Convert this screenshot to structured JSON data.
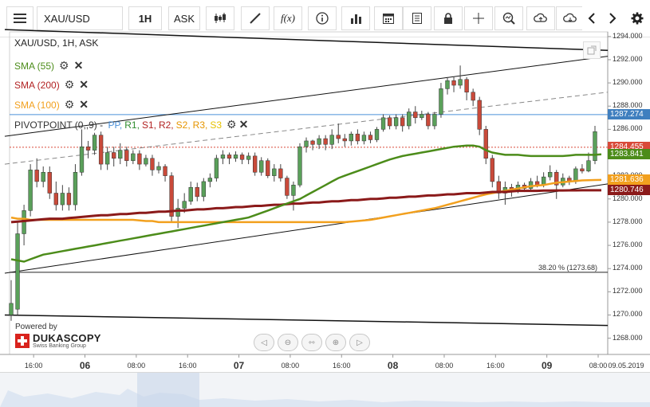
{
  "toolbar": {
    "instrument": "XAU/USD",
    "timeframe": "1H",
    "side": "ASK",
    "fx_label": "f(x)"
  },
  "legend": {
    "title": "XAU/USD, 1H, ASK",
    "sma55": "SMA (55)",
    "sma200": "SMA (200)",
    "sma100": "SMA (100)",
    "pivot_prefix": "PIVOTPOINT (0,,9) - ",
    "pivot_items": [
      {
        "label": "PP,",
        "color": "#4a90d9"
      },
      {
        "label": "R1,",
        "color": "#2e8b2e"
      },
      {
        "label": "S1,",
        "color": "#b22222"
      },
      {
        "label": "R2,",
        "color": "#b22222"
      },
      {
        "label": "S2,",
        "color": "#e69500"
      },
      {
        "label": "R3,",
        "color": "#e69500"
      },
      {
        "label": "S3",
        "color": "#e6c200"
      }
    ]
  },
  "colors": {
    "up": "#5aa05a",
    "down": "#c94a3a",
    "sma55": "#4c8c1a",
    "sma200": "#8b1a1a",
    "sma100": "#f2a01e",
    "pivot": "#4a90d9",
    "current": "#d94a3a"
  },
  "price_tags": [
    {
      "value": "1287.274",
      "color": "#3f7fbf"
    },
    {
      "value": "1284.455",
      "color": "#d94a3a"
    },
    {
      "value": "1283.841",
      "color": "#4c8c1a"
    },
    {
      "value": "1281.636",
      "color": "#f2a01e"
    },
    {
      "value": "1280.746",
      "color": "#8b1a1a"
    }
  ],
  "fib_label": "38.20 % (1273.68)",
  "branding": {
    "powered_by": "Powered by",
    "brand": "DUKASCOPY",
    "tagline": "Swiss Banking Group"
  },
  "chart_data": {
    "type": "candlestick",
    "instrument": "XAU/USD",
    "timeframe": "1H",
    "ylim": [
      1266.6,
      1294.4
    ],
    "y_ticks": [
      "1294.000",
      "1292.000",
      "1290.000",
      "1288.000",
      "1286.000",
      "1282.000",
      "1280.000",
      "1278.000",
      "1276.000",
      "1274.000",
      "1272.000",
      "1270.000",
      "1268.000"
    ],
    "x_ticks": [
      {
        "label": "16:00",
        "idx": 3.5,
        "bold": false
      },
      {
        "label": "06",
        "idx": 11.5,
        "bold": true
      },
      {
        "label": "08:00",
        "idx": 19.5,
        "bold": false
      },
      {
        "label": "16:00",
        "idx": 27.5,
        "bold": false
      },
      {
        "label": "07",
        "idx": 35.5,
        "bold": true
      },
      {
        "label": "08:00",
        "idx": 43.5,
        "bold": false
      },
      {
        "label": "16:00",
        "idx": 51.5,
        "bold": false
      },
      {
        "label": "08",
        "idx": 59.5,
        "bold": true
      },
      {
        "label": "08:00",
        "idx": 67.5,
        "bold": false
      },
      {
        "label": "16:00",
        "idx": 75.5,
        "bold": false
      },
      {
        "label": "09",
        "idx": 83.5,
        "bold": true
      },
      {
        "label": "08:00",
        "idx": 91.5,
        "bold": false
      }
    ],
    "last_date_label": "09.05.2019",
    "candles": [
      [
        1270.0,
        1271.0,
        1269.5,
        1273.0
      ],
      [
        1270.5,
        1277.0,
        1270.0,
        1278.0
      ],
      [
        1277.0,
        1279.0,
        1276.0,
        1279.5
      ],
      [
        1279.0,
        1282.5,
        1278.5,
        1283.0
      ],
      [
        1282.5,
        1281.5,
        1281.0,
        1283.5
      ],
      [
        1281.5,
        1282.3,
        1281.0,
        1282.8
      ],
      [
        1282.3,
        1280.5,
        1280.0,
        1282.8
      ],
      [
        1280.5,
        1279.5,
        1279.0,
        1281.5
      ],
      [
        1279.5,
        1280.5,
        1279.0,
        1281.2
      ],
      [
        1280.5,
        1279.5,
        1279.0,
        1281.0
      ],
      [
        1279.5,
        1282.3,
        1279.0,
        1283.0
      ],
      [
        1282.3,
        1284.5,
        1282.0,
        1286.0
      ],
      [
        1284.5,
        1284.2,
        1283.5,
        1285.0
      ],
      [
        1284.2,
        1285.5,
        1283.8,
        1285.7
      ],
      [
        1285.5,
        1283.0,
        1282.5,
        1285.8
      ],
      [
        1283.0,
        1284.0,
        1282.5,
        1284.5
      ],
      [
        1284.0,
        1283.5,
        1282.8,
        1284.5
      ],
      [
        1283.5,
        1284.2,
        1283.0,
        1284.8
      ],
      [
        1284.2,
        1283.3,
        1282.8,
        1284.5
      ],
      [
        1283.3,
        1283.9,
        1283.0,
        1284.2
      ],
      [
        1283.9,
        1283.0,
        1282.5,
        1284.2
      ],
      [
        1283.0,
        1283.5,
        1282.8,
        1283.8
      ],
      [
        1283.5,
        1282.5,
        1282.0,
        1283.8
      ],
      [
        1282.5,
        1282.8,
        1282.2,
        1283.2
      ],
      [
        1282.8,
        1282.0,
        1281.5,
        1283.0
      ],
      [
        1282.0,
        1278.5,
        1278.0,
        1282.3
      ],
      [
        1278.5,
        1279.2,
        1277.5,
        1280.0
      ],
      [
        1279.2,
        1279.8,
        1278.8,
        1280.5
      ],
      [
        1279.8,
        1281.0,
        1279.5,
        1281.5
      ],
      [
        1281.0,
        1280.2,
        1279.8,
        1281.4
      ],
      [
        1280.2,
        1281.5,
        1279.8,
        1281.8
      ],
      [
        1281.5,
        1281.8,
        1281.0,
        1282.2
      ],
      [
        1281.8,
        1283.5,
        1281.5,
        1283.8
      ],
      [
        1283.5,
        1283.8,
        1283.0,
        1284.2
      ],
      [
        1283.8,
        1283.5,
        1283.0,
        1284.0
      ],
      [
        1283.5,
        1283.8,
        1283.2,
        1284.1
      ],
      [
        1283.8,
        1283.4,
        1283.0,
        1284.0
      ],
      [
        1283.4,
        1283.7,
        1283.0,
        1284.0
      ],
      [
        1283.7,
        1282.3,
        1282.0,
        1284.0
      ],
      [
        1282.3,
        1283.3,
        1282.0,
        1283.6
      ],
      [
        1283.3,
        1282.0,
        1281.8,
        1283.5
      ],
      [
        1282.0,
        1282.6,
        1281.5,
        1283.0
      ],
      [
        1282.6,
        1281.8,
        1281.5,
        1283.0
      ],
      [
        1281.8,
        1280.3,
        1280.0,
        1282.0
      ],
      [
        1280.3,
        1281.2,
        1279.0,
        1281.5
      ],
      [
        1281.2,
        1284.5,
        1281.0,
        1284.8
      ],
      [
        1284.5,
        1285.0,
        1284.0,
        1285.3
      ],
      [
        1285.0,
        1284.7,
        1284.2,
        1285.1
      ],
      [
        1284.7,
        1285.2,
        1284.3,
        1285.5
      ],
      [
        1285.2,
        1284.7,
        1284.2,
        1285.5
      ],
      [
        1284.7,
        1285.5,
        1284.3,
        1286.0
      ],
      [
        1285.5,
        1285.2,
        1284.8,
        1286.5
      ],
      [
        1285.2,
        1285.0,
        1284.5,
        1285.6
      ],
      [
        1285.0,
        1285.6,
        1284.6,
        1285.8
      ],
      [
        1285.6,
        1285.0,
        1284.7,
        1286.0
      ],
      [
        1285.0,
        1285.5,
        1284.7,
        1285.8
      ],
      [
        1285.5,
        1285.1,
        1284.8,
        1285.8
      ],
      [
        1285.1,
        1286.0,
        1284.9,
        1286.2
      ],
      [
        1286.0,
        1287.0,
        1285.8,
        1287.3
      ],
      [
        1287.0,
        1286.3,
        1286.0,
        1287.2
      ],
      [
        1286.3,
        1287.0,
        1286.0,
        1287.3
      ],
      [
        1287.0,
        1286.3,
        1285.8,
        1287.3
      ],
      [
        1286.3,
        1287.5,
        1286.0,
        1287.8
      ],
      [
        1287.5,
        1287.0,
        1286.5,
        1288.0
      ],
      [
        1287.0,
        1287.3,
        1286.8,
        1287.6
      ],
      [
        1287.3,
        1286.3,
        1286.0,
        1287.5
      ],
      [
        1286.3,
        1287.3,
        1286.0,
        1287.5
      ],
      [
        1287.3,
        1289.5,
        1287.0,
        1290.0
      ],
      [
        1289.5,
        1290.2,
        1289.0,
        1290.5
      ],
      [
        1290.2,
        1289.8,
        1289.2,
        1290.5
      ],
      [
        1289.8,
        1290.3,
        1289.5,
        1291.5
      ],
      [
        1290.3,
        1289.2,
        1288.5,
        1290.5
      ],
      [
        1289.2,
        1288.5,
        1288.0,
        1289.5
      ],
      [
        1288.5,
        1286.0,
        1285.5,
        1288.8
      ],
      [
        1286.0,
        1283.5,
        1283.0,
        1286.3
      ],
      [
        1283.5,
        1281.5,
        1281.0,
        1283.8
      ],
      [
        1281.5,
        1280.5,
        1280.0,
        1282.0
      ],
      [
        1280.5,
        1281.0,
        1279.5,
        1281.5
      ],
      [
        1281.0,
        1280.7,
        1280.2,
        1281.3
      ],
      [
        1280.7,
        1281.2,
        1280.5,
        1281.5
      ],
      [
        1281.2,
        1280.9,
        1280.6,
        1281.4
      ],
      [
        1280.9,
        1281.5,
        1280.7,
        1281.8
      ],
      [
        1281.5,
        1281.2,
        1281.0,
        1282.0
      ],
      [
        1281.2,
        1281.9,
        1281.0,
        1282.3
      ],
      [
        1281.9,
        1282.3,
        1281.6,
        1282.9
      ],
      [
        1282.3,
        1281.2,
        1280.0,
        1282.5
      ],
      [
        1281.2,
        1281.8,
        1281.0,
        1282.2
      ],
      [
        1281.8,
        1281.5,
        1281.2,
        1282.0
      ],
      [
        1281.5,
        1282.6,
        1281.3,
        1282.8
      ],
      [
        1282.6,
        1282.4,
        1282.2,
        1283.0
      ],
      [
        1282.4,
        1283.3,
        1282.3,
        1284.0
      ],
      [
        1283.3,
        1285.8,
        1283.0,
        1286.3
      ]
    ],
    "sma55": [
      1274.8,
      1274.7,
      1274.6,
      1274.8,
      1275.0,
      1275.2,
      1275.3,
      1275.4,
      1275.5,
      1275.6,
      1275.7,
      1275.8,
      1275.9,
      1276.0,
      1276.1,
      1276.2,
      1276.3,
      1276.4,
      1276.5,
      1276.6,
      1276.7,
      1276.8,
      1276.9,
      1277.0,
      1277.1,
      1277.2,
      1277.3,
      1277.4,
      1277.5,
      1277.6,
      1277.7,
      1277.8,
      1277.9,
      1278.0,
      1278.1,
      1278.2,
      1278.3,
      1278.4,
      1278.6,
      1278.8,
      1279.0,
      1279.2,
      1279.4,
      1279.6,
      1279.8,
      1280.0,
      1280.3,
      1280.6,
      1280.9,
      1281.2,
      1281.5,
      1281.8,
      1282.0,
      1282.2,
      1282.4,
      1282.6,
      1282.8,
      1283.0,
      1283.2,
      1283.4,
      1283.55,
      1283.7,
      1283.8,
      1283.9,
      1284.0,
      1284.1,
      1284.2,
      1284.3,
      1284.4,
      1284.5,
      1284.55,
      1284.6,
      1284.6,
      1284.5,
      1284.2,
      1284.0,
      1283.9,
      1283.8,
      1283.8,
      1283.8,
      1283.75,
      1283.7,
      1283.7,
      1283.7,
      1283.7,
      1283.7,
      1283.7,
      1283.75,
      1283.8,
      1283.8,
      1283.8,
      1283.8,
      1283.84
    ],
    "sma100": [
      1278.4,
      1278.3,
      1278.3,
      1278.2,
      1278.2,
      1278.2,
      1278.2,
      1278.2,
      1278.2,
      1278.2,
      1278.2,
      1278.2,
      1278.2,
      1278.2,
      1278.2,
      1278.2,
      1278.2,
      1278.2,
      1278.2,
      1278.2,
      1278.15,
      1278.1,
      1278.1,
      1278.0,
      1278.0,
      1278.0,
      1278.0,
      1278.0,
      1278.0,
      1278.0,
      1278.0,
      1278.0,
      1278.0,
      1278.0,
      1278.0,
      1278.0,
      1278.0,
      1278.0,
      1278.0,
      1278.0,
      1278.0,
      1278.0,
      1278.0,
      1278.0,
      1278.0,
      1278.0,
      1278.0,
      1278.0,
      1278.0,
      1278.0,
      1278.0,
      1278.0,
      1278.0,
      1278.05,
      1278.1,
      1278.15,
      1278.2,
      1278.3,
      1278.4,
      1278.5,
      1278.6,
      1278.7,
      1278.8,
      1278.9,
      1279.0,
      1279.1,
      1279.2,
      1279.35,
      1279.5,
      1279.65,
      1279.8,
      1279.95,
      1280.1,
      1280.25,
      1280.4,
      1280.5,
      1280.6,
      1280.7,
      1280.8,
      1280.9,
      1281.0,
      1281.1,
      1281.15,
      1281.2,
      1281.3,
      1281.4,
      1281.45,
      1281.5,
      1281.55,
      1281.6,
      1281.62,
      1281.63,
      1281.64
    ],
    "sma200": [
      1278.0,
      1278.05,
      1278.1,
      1278.15,
      1278.2,
      1278.25,
      1278.3,
      1278.3,
      1278.3,
      1278.35,
      1278.4,
      1278.45,
      1278.5,
      1278.55,
      1278.6,
      1278.6,
      1278.65,
      1278.7,
      1278.7,
      1278.75,
      1278.8,
      1278.8,
      1278.85,
      1278.9,
      1278.9,
      1278.95,
      1279.0,
      1279.0,
      1279.05,
      1279.1,
      1279.1,
      1279.15,
      1279.2,
      1279.2,
      1279.25,
      1279.3,
      1279.3,
      1279.35,
      1279.4,
      1279.4,
      1279.45,
      1279.5,
      1279.5,
      1279.55,
      1279.6,
      1279.6,
      1279.65,
      1279.7,
      1279.7,
      1279.75,
      1279.8,
      1279.8,
      1279.85,
      1279.9,
      1279.9,
      1279.95,
      1280.0,
      1280.0,
      1280.05,
      1280.1,
      1280.1,
      1280.15,
      1280.2,
      1280.2,
      1280.25,
      1280.3,
      1280.3,
      1280.35,
      1280.4,
      1280.4,
      1280.45,
      1280.5,
      1280.5,
      1280.5,
      1280.55,
      1280.6,
      1280.6,
      1280.6,
      1280.65,
      1280.7,
      1280.7,
      1280.7,
      1280.7,
      1280.72,
      1280.72,
      1280.73,
      1280.73,
      1280.74,
      1280.74,
      1280.745,
      1280.746,
      1280.746,
      1280.746
    ],
    "pivot": 1287.274,
    "current": 1284.455,
    "fib_level": 1273.68,
    "lines": [
      {
        "x1": -1,
        "y1": 1294.6,
        "x2": 93,
        "y2": 1292.8,
        "style": "solid",
        "width": 1.5
      },
      {
        "x1": -1,
        "y1": 1285.4,
        "x2": 93,
        "y2": 1292.3,
        "style": "solid",
        "width": 1
      },
      {
        "x1": -1,
        "y1": 1283.0,
        "x2": 93,
        "y2": 1289.2,
        "style": "dashed",
        "width": 1
      },
      {
        "x1": -1,
        "y1": 1273.6,
        "x2": 93,
        "y2": 1281.3,
        "style": "solid",
        "width": 1
      },
      {
        "x1": -1,
        "y1": 1270.0,
        "x2": 93,
        "y2": 1269.1,
        "style": "solid",
        "width": 1.5
      }
    ],
    "dotted_ref": 1285.0
  }
}
